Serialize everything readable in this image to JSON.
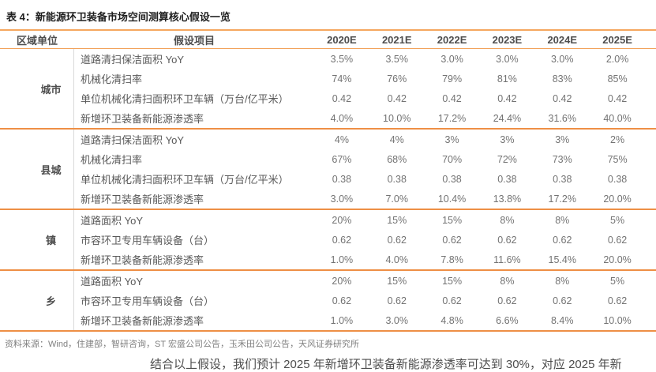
{
  "title": "表 4：新能源环卫装备市场空间测算核心假设一览",
  "table": {
    "region_header": "区域单位",
    "item_header": "假设项目",
    "years": [
      "2020E",
      "2021E",
      "2022E",
      "2023E",
      "2024E",
      "2025E"
    ],
    "sections": [
      {
        "region": "城市",
        "rows": [
          {
            "item": "道路清扫保洁面积 YoY",
            "values": [
              "3.5%",
              "3.5%",
              "3.0%",
              "3.0%",
              "3.0%",
              "2.0%"
            ]
          },
          {
            "item": "机械化清扫率",
            "values": [
              "74%",
              "76%",
              "79%",
              "81%",
              "83%",
              "85%"
            ]
          },
          {
            "item": "单位机械化清扫面积环卫车辆（万台/亿平米）",
            "values": [
              "0.42",
              "0.42",
              "0.42",
              "0.42",
              "0.42",
              "0.42"
            ]
          },
          {
            "item": "新增环卫装备新能源渗透率",
            "values": [
              "4.0%",
              "10.0%",
              "17.2%",
              "24.4%",
              "31.6%",
              "40.0%"
            ]
          }
        ]
      },
      {
        "region": "县城",
        "rows": [
          {
            "item": "道路清扫保洁面积 YoY",
            "values": [
              "4%",
              "4%",
              "3%",
              "3%",
              "3%",
              "2%"
            ]
          },
          {
            "item": "机械化清扫率",
            "values": [
              "67%",
              "68%",
              "70%",
              "72%",
              "73%",
              "75%"
            ]
          },
          {
            "item": "单位机械化清扫面积环卫车辆（万台/亿平米）",
            "values": [
              "0.38",
              "0.38",
              "0.38",
              "0.38",
              "0.38",
              "0.38"
            ]
          },
          {
            "item": "新增环卫装备新能源渗透率",
            "values": [
              "3.0%",
              "7.0%",
              "10.4%",
              "13.8%",
              "17.2%",
              "20.0%"
            ]
          }
        ]
      },
      {
        "region": "镇",
        "rows": [
          {
            "item": "道路面积 YoY",
            "values": [
              "20%",
              "15%",
              "15%",
              "8%",
              "8%",
              "5%"
            ]
          },
          {
            "item": "市容环卫专用车辆设备（台）",
            "values": [
              "0.62",
              "0.62",
              "0.62",
              "0.62",
              "0.62",
              "0.62"
            ]
          },
          {
            "item": "新增环卫装备新能源渗透率",
            "values": [
              "1.0%",
              "4.0%",
              "7.8%",
              "11.6%",
              "15.4%",
              "20.0%"
            ]
          }
        ]
      },
      {
        "region": "乡",
        "rows": [
          {
            "item": "道路面积 YoY",
            "values": [
              "20%",
              "15%",
              "15%",
              "8%",
              "8%",
              "5%"
            ]
          },
          {
            "item": "市容环卫专用车辆设备（台）",
            "values": [
              "0.62",
              "0.62",
              "0.62",
              "0.62",
              "0.62",
              "0.62"
            ]
          },
          {
            "item": "新增环卫装备新能源渗透率",
            "values": [
              "1.0%",
              "3.0%",
              "4.8%",
              "6.6%",
              "8.4%",
              "10.0%"
            ]
          }
        ]
      }
    ]
  },
  "source": "资料来源：Wind，住建部，智研咨询，ST 宏盛公司公告，玉禾田公司公告，天风证券研究所",
  "partial_text": "结合以上假设，我们预计 2025 年新增环卫装备新能源渗透率可达到 30%，对应 2025 年新",
  "colors": {
    "accent_orange": "#EE8F45",
    "light_orange": "#F5A75F",
    "divider_gray": "#d9d9d9"
  }
}
